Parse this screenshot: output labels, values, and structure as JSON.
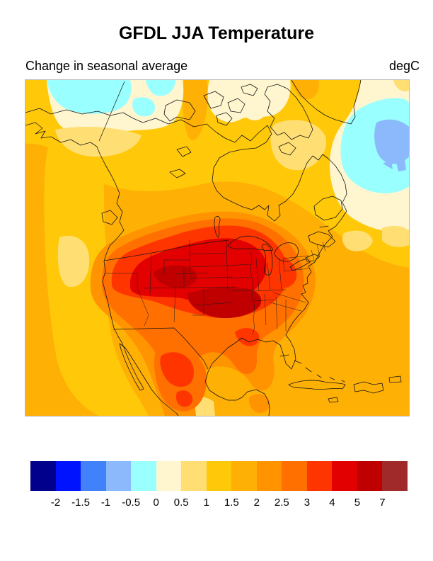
{
  "title": "GFDL JJA Temperature",
  "subtitle_left": "Change in seasonal average",
  "subtitle_right": "degC",
  "colorbar": {
    "labels": [
      "-2",
      "-1.5",
      "-1",
      "-0.5",
      "0",
      "0.5",
      "1",
      "1.5",
      "2",
      "2.5",
      "3",
      "4",
      "5",
      "7"
    ],
    "colors": [
      "#00008C",
      "#0013FF",
      "#4182FB",
      "#8CB8FC",
      "#99FFFF",
      "#FFF6D0",
      "#FFDF73",
      "#FFC808",
      "#FFB005",
      "#FF9400",
      "#FF7000",
      "#FF3500",
      "#E30000",
      "#C00000",
      "#A02A2A"
    ]
  },
  "palette": {
    "navy": "#00008C",
    "blue": "#0013FF",
    "medblue": "#4182FB",
    "ltblue": "#8CB8FC",
    "cyan": "#99FFFF",
    "cream": "#FFF6D0",
    "ltgold": "#FFDF73",
    "gold": "#FFC808",
    "amber": "#FFB005",
    "orange": "#FF9400",
    "dkorange": "#FF7000",
    "ored": "#FF3500",
    "red": "#E30000",
    "dkred": "#C00000",
    "brick": "#A02A2A",
    "coastline": "#161616",
    "frame": "#b9b9b9"
  },
  "chart_data": {
    "type": "heatmap",
    "title": "GFDL JJA Temperature",
    "subtitle": "Change in seasonal average",
    "units": "degC",
    "region_shown": "North America (Alaska/Canada/Greenland to Caribbean)",
    "legend_levels": [
      -2,
      -1.5,
      -1,
      -0.5,
      0,
      0.5,
      1,
      1.5,
      2,
      2.5,
      3,
      4,
      5,
      7
    ],
    "legend_colors": [
      "#00008C",
      "#0013FF",
      "#4182FB",
      "#8CB8FC",
      "#99FFFF",
      "#FFF6D0",
      "#FFDF73",
      "#FFC808",
      "#FFB005",
      "#FF9400",
      "#FF7000",
      "#FF3500",
      "#E30000",
      "#C00000",
      "#A02A2A"
    ],
    "legend_position": "bottom",
    "observed_values": [
      {
        "area": "Central US Great Plains (WY/KS/MO/OK cores)",
        "value_degC": "5 to 7"
      },
      {
        "area": "Western and central US interior",
        "value_degC": "4 to 5"
      },
      {
        "area": "US East/Southeast, Texas, northern Mexico patches",
        "value_degC": "2.5 to 4"
      },
      {
        "area": "US coasts, Florida, Great Lakes fringe, Mexico",
        "value_degC": "2 to 2.5"
      },
      {
        "area": "Southern Canada, Gulf of Mexico, mid oceans",
        "value_degC": "1.5 to 2"
      },
      {
        "area": "Northern Canada, Pacific and NW Atlantic bands",
        "value_degC": "1 to 1.5"
      },
      {
        "area": "Alaska and Arctic islands",
        "value_degC": "0 to 1"
      },
      {
        "area": "Beaufort Sea patches and NW Atlantic south of Greenland",
        "value_degC": "-0.5 to 0"
      },
      {
        "area": "NW Atlantic core east of Labrador",
        "value_degC": "-1 to -0.5"
      }
    ]
  }
}
